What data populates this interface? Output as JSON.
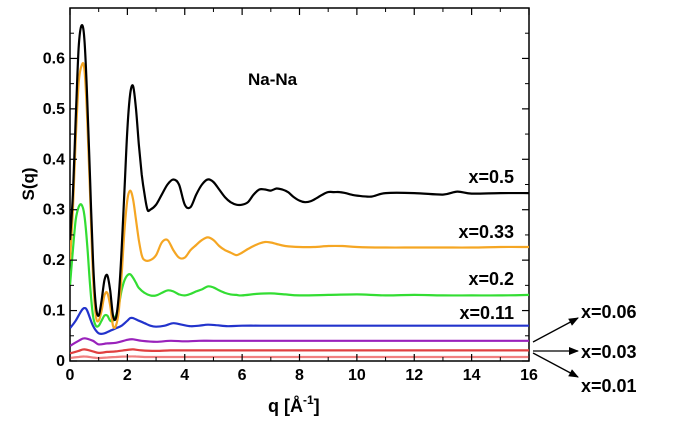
{
  "chart_data": {
    "type": "line",
    "title": "Na-Na",
    "xlabel": "q  [Å",
    "xlabel_sup": "-1",
    "xlabel_end": "]",
    "ylabel": "S(q)",
    "xlim": [
      0,
      16
    ],
    "ylim": [
      0,
      0.7
    ],
    "xticks": [
      "0",
      "2",
      "4",
      "6",
      "8",
      "10",
      "12",
      "14",
      "16"
    ],
    "yticks": [
      "0",
      "0.1",
      "0.2",
      "0.3",
      "0.4",
      "0.5",
      "0.6"
    ],
    "grid": false,
    "series": [
      {
        "name": "x=0.5",
        "color": "#000000",
        "x": [
          0,
          0.1,
          0.2,
          0.3,
          0.4,
          0.5,
          0.6,
          0.7,
          0.8,
          0.9,
          1.0,
          1.1,
          1.2,
          1.3,
          1.4,
          1.5,
          1.6,
          1.7,
          1.8,
          1.9,
          2.0,
          2.1,
          2.2,
          2.3,
          2.4,
          2.5,
          2.6,
          2.7,
          2.8,
          3.0,
          3.2,
          3.4,
          3.6,
          3.8,
          4.0,
          4.2,
          4.4,
          4.6,
          4.8,
          5.0,
          5.2,
          5.4,
          5.6,
          5.8,
          6.0,
          6.2,
          6.4,
          6.6,
          6.8,
          7.0,
          7.2,
          7.4,
          7.6,
          7.8,
          8.0,
          8.2,
          8.4,
          8.6,
          8.8,
          9.0,
          9.2,
          9.4,
          9.6,
          9.8,
          10.0,
          10.5,
          11.0,
          12.0,
          13.0,
          13.5,
          14.0,
          15.0,
          16.0
        ],
        "y": [
          0.24,
          0.33,
          0.48,
          0.62,
          0.665,
          0.64,
          0.52,
          0.36,
          0.2,
          0.11,
          0.09,
          0.12,
          0.16,
          0.17,
          0.14,
          0.09,
          0.085,
          0.13,
          0.22,
          0.34,
          0.46,
          0.53,
          0.545,
          0.5,
          0.43,
          0.37,
          0.33,
          0.3,
          0.3,
          0.31,
          0.33,
          0.35,
          0.36,
          0.35,
          0.31,
          0.305,
          0.33,
          0.35,
          0.36,
          0.355,
          0.34,
          0.325,
          0.315,
          0.31,
          0.31,
          0.315,
          0.33,
          0.34,
          0.34,
          0.338,
          0.342,
          0.34,
          0.335,
          0.325,
          0.318,
          0.315,
          0.317,
          0.323,
          0.33,
          0.335,
          0.335,
          0.335,
          0.333,
          0.33,
          0.328,
          0.326,
          0.333,
          0.333,
          0.33,
          0.336,
          0.332,
          0.333,
          0.333
        ]
      },
      {
        "name": "x=0.33",
        "color": "#f5a623",
        "x": [
          0,
          0.1,
          0.2,
          0.3,
          0.4,
          0.5,
          0.6,
          0.7,
          0.8,
          0.9,
          1.0,
          1.1,
          1.2,
          1.3,
          1.4,
          1.5,
          1.6,
          1.7,
          1.8,
          1.9,
          2.0,
          2.1,
          2.2,
          2.3,
          2.4,
          2.5,
          2.6,
          2.8,
          3.0,
          3.2,
          3.4,
          3.6,
          3.8,
          4.0,
          4.2,
          4.4,
          4.6,
          4.8,
          5.0,
          5.2,
          5.4,
          5.6,
          5.8,
          6.0,
          6.2,
          6.4,
          6.6,
          6.8,
          7.0,
          7.2,
          7.5,
          8.0,
          8.5,
          9.0,
          9.5,
          10.0,
          11.0,
          12.0,
          13.0,
          14.0,
          15.0,
          16.0
        ],
        "y": [
          0.2,
          0.3,
          0.44,
          0.55,
          0.585,
          0.58,
          0.48,
          0.33,
          0.17,
          0.09,
          0.08,
          0.1,
          0.13,
          0.135,
          0.11,
          0.07,
          0.07,
          0.1,
          0.17,
          0.26,
          0.32,
          0.338,
          0.32,
          0.28,
          0.24,
          0.21,
          0.2,
          0.2,
          0.21,
          0.235,
          0.24,
          0.22,
          0.205,
          0.205,
          0.22,
          0.23,
          0.24,
          0.245,
          0.24,
          0.228,
          0.22,
          0.215,
          0.21,
          0.215,
          0.222,
          0.228,
          0.233,
          0.236,
          0.235,
          0.232,
          0.228,
          0.226,
          0.226,
          0.228,
          0.228,
          0.226,
          0.225,
          0.225,
          0.225,
          0.225,
          0.226,
          0.226
        ]
      },
      {
        "name": "x=0.2",
        "color": "#33dd33",
        "x": [
          0,
          0.1,
          0.2,
          0.3,
          0.4,
          0.5,
          0.6,
          0.7,
          0.8,
          0.9,
          1.0,
          1.1,
          1.2,
          1.3,
          1.4,
          1.5,
          1.6,
          1.7,
          1.8,
          1.9,
          2.0,
          2.1,
          2.2,
          2.3,
          2.4,
          2.6,
          2.8,
          3.0,
          3.2,
          3.4,
          3.6,
          3.8,
          4.0,
          4.2,
          4.4,
          4.6,
          4.8,
          5.0,
          5.2,
          5.4,
          5.6,
          5.8,
          6.0,
          6.5,
          7.0,
          7.5,
          8.0,
          9.0,
          10.0,
          11.0,
          12.0,
          13.0,
          14.0,
          15.0,
          16.0
        ],
        "y": [
          0.15,
          0.22,
          0.28,
          0.305,
          0.31,
          0.29,
          0.23,
          0.15,
          0.09,
          0.07,
          0.07,
          0.08,
          0.09,
          0.09,
          0.08,
          0.08,
          0.09,
          0.11,
          0.14,
          0.16,
          0.17,
          0.172,
          0.165,
          0.155,
          0.145,
          0.135,
          0.13,
          0.13,
          0.135,
          0.14,
          0.138,
          0.132,
          0.13,
          0.133,
          0.138,
          0.142,
          0.148,
          0.146,
          0.14,
          0.135,
          0.132,
          0.131,
          0.13,
          0.133,
          0.134,
          0.132,
          0.13,
          0.131,
          0.132,
          0.13,
          0.131,
          0.13,
          0.13,
          0.13,
          0.131
        ]
      },
      {
        "name": "x=0.11",
        "color": "#2233cc",
        "x": [
          0,
          0.2,
          0.4,
          0.5,
          0.6,
          0.8,
          1.0,
          1.2,
          1.4,
          1.6,
          1.8,
          2.0,
          2.1,
          2.2,
          2.4,
          2.6,
          2.8,
          3.0,
          3.3,
          3.6,
          3.9,
          4.2,
          4.5,
          4.8,
          5.1,
          5.5,
          6.0,
          7.0,
          8.0,
          9.0,
          10.0,
          12.0,
          14.0,
          16.0
        ],
        "y": [
          0.065,
          0.08,
          0.1,
          0.105,
          0.1,
          0.07,
          0.055,
          0.055,
          0.06,
          0.065,
          0.07,
          0.08,
          0.085,
          0.085,
          0.08,
          0.075,
          0.07,
          0.068,
          0.07,
          0.075,
          0.072,
          0.069,
          0.07,
          0.072,
          0.071,
          0.069,
          0.07,
          0.07,
          0.07,
          0.07,
          0.07,
          0.07,
          0.07,
          0.07
        ]
      },
      {
        "name": "x=0.06",
        "color": "#9922bb",
        "x": [
          0,
          0.3,
          0.5,
          0.8,
          1.0,
          1.3,
          1.6,
          2.0,
          2.2,
          2.5,
          3.0,
          3.5,
          4.0,
          4.5,
          5.0,
          6.0,
          8.0,
          10.0,
          12.0,
          14.0,
          16.0
        ],
        "y": [
          0.03,
          0.04,
          0.045,
          0.04,
          0.033,
          0.035,
          0.036,
          0.042,
          0.043,
          0.04,
          0.038,
          0.04,
          0.039,
          0.04,
          0.04,
          0.04,
          0.04,
          0.04,
          0.04,
          0.04,
          0.04
        ]
      },
      {
        "name": "x=0.03",
        "color": "#e04040",
        "x": [
          0,
          0.3,
          0.5,
          0.8,
          1.0,
          1.3,
          1.6,
          2.0,
          2.2,
          2.5,
          3.0,
          3.5,
          4.0,
          5.0,
          6.0,
          8.0,
          10.0,
          12.0,
          14.0,
          16.0
        ],
        "y": [
          0.015,
          0.02,
          0.023,
          0.019,
          0.016,
          0.018,
          0.019,
          0.022,
          0.023,
          0.021,
          0.02,
          0.021,
          0.021,
          0.021,
          0.021,
          0.021,
          0.021,
          0.021,
          0.021,
          0.021
        ]
      },
      {
        "name": "x=0.01",
        "color": "#f08080",
        "x": [
          0,
          0.3,
          0.5,
          0.8,
          1.0,
          1.3,
          1.6,
          2.0,
          2.3,
          2.6,
          3.0,
          4.0,
          5.0,
          6.0,
          8.0,
          10.0,
          12.0,
          14.0,
          16.0
        ],
        "y": [
          0.006,
          0.008,
          0.009,
          0.007,
          0.006,
          0.007,
          0.008,
          0.009,
          0.009,
          0.008,
          0.008,
          0.008,
          0.008,
          0.008,
          0.008,
          0.008,
          0.008,
          0.008,
          0.008
        ]
      }
    ]
  }
}
